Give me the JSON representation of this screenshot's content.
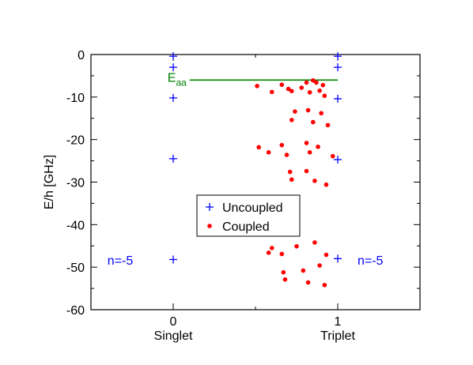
{
  "chart_data": {
    "type": "scatter",
    "ylabel": "E/h [GHz]",
    "xlim": [
      -0.5,
      1.5
    ],
    "ylim": [
      -60,
      0
    ],
    "x_ticks": [
      {
        "value": 0,
        "number": "0",
        "name": "Singlet"
      },
      {
        "value": 1,
        "number": "1",
        "name": "Triplet"
      }
    ],
    "y_ticks": [
      0,
      -10,
      -20,
      -30,
      -40,
      -50,
      -60
    ],
    "grid": false,
    "legend_position": "center",
    "series": [
      {
        "name": "Uncoupled",
        "marker": "plus",
        "color": "#0000ff",
        "points": [
          [
            0,
            -0.4
          ],
          [
            0,
            -3.0
          ],
          [
            0,
            -10.2
          ],
          [
            0,
            -24.5
          ],
          [
            0,
            -48.2
          ],
          [
            1,
            -0.4
          ],
          [
            1,
            -3.0
          ],
          [
            1,
            -10.4
          ],
          [
            1,
            -24.7
          ],
          [
            1,
            -48.0
          ]
        ]
      },
      {
        "name": "Coupled",
        "marker": "circle",
        "color": "#ff0000",
        "points": [
          [
            0.51,
            -7.4
          ],
          [
            0.6,
            -8.8
          ],
          [
            0.66,
            -7.1
          ],
          [
            0.7,
            -8.1
          ],
          [
            0.72,
            -8.6
          ],
          [
            0.78,
            -7.8
          ],
          [
            0.81,
            -6.6
          ],
          [
            0.83,
            -8.9
          ],
          [
            0.85,
            -6.1
          ],
          [
            0.87,
            -6.6
          ],
          [
            0.89,
            -8.5
          ],
          [
            0.91,
            -7.2
          ],
          [
            0.92,
            -9.7
          ],
          [
            0.74,
            -13.4
          ],
          [
            0.72,
            -15.4
          ],
          [
            0.82,
            -13.1
          ],
          [
            0.85,
            -15.9
          ],
          [
            0.9,
            -13.8
          ],
          [
            0.94,
            -16.6
          ],
          [
            0.52,
            -21.8
          ],
          [
            0.58,
            -23.0
          ],
          [
            0.66,
            -21.3
          ],
          [
            0.69,
            -23.6
          ],
          [
            0.81,
            -20.8
          ],
          [
            0.83,
            -23.0
          ],
          [
            0.88,
            -21.7
          ],
          [
            0.71,
            -27.6
          ],
          [
            0.72,
            -29.4
          ],
          [
            0.81,
            -27.4
          ],
          [
            0.86,
            -29.7
          ],
          [
            0.93,
            -30.6
          ],
          [
            0.97,
            -23.9
          ],
          [
            0.58,
            -46.6
          ],
          [
            0.6,
            -45.5
          ],
          [
            0.66,
            -46.9
          ],
          [
            0.67,
            -51.2
          ],
          [
            0.68,
            -52.9
          ],
          [
            0.75,
            -45.1
          ],
          [
            0.79,
            -50.8
          ],
          [
            0.82,
            -53.6
          ],
          [
            0.86,
            -44.2
          ],
          [
            0.89,
            -49.6
          ],
          [
            0.93,
            -47.1
          ],
          [
            0.92,
            -54.2
          ]
        ]
      }
    ],
    "reference_line": {
      "label_main": "E",
      "label_sub": "aa",
      "y": -6.0,
      "x_start": 0.1,
      "x_end": 1.0,
      "color": "#008000"
    },
    "annotations": [
      {
        "text": "n=-5",
        "x": -0.4,
        "y": -48.3,
        "color": "#0000ff",
        "anchor": "start"
      },
      {
        "text": "n=-5",
        "x": 1.12,
        "y": -48.3,
        "color": "#0000ff",
        "anchor": "start"
      }
    ]
  }
}
